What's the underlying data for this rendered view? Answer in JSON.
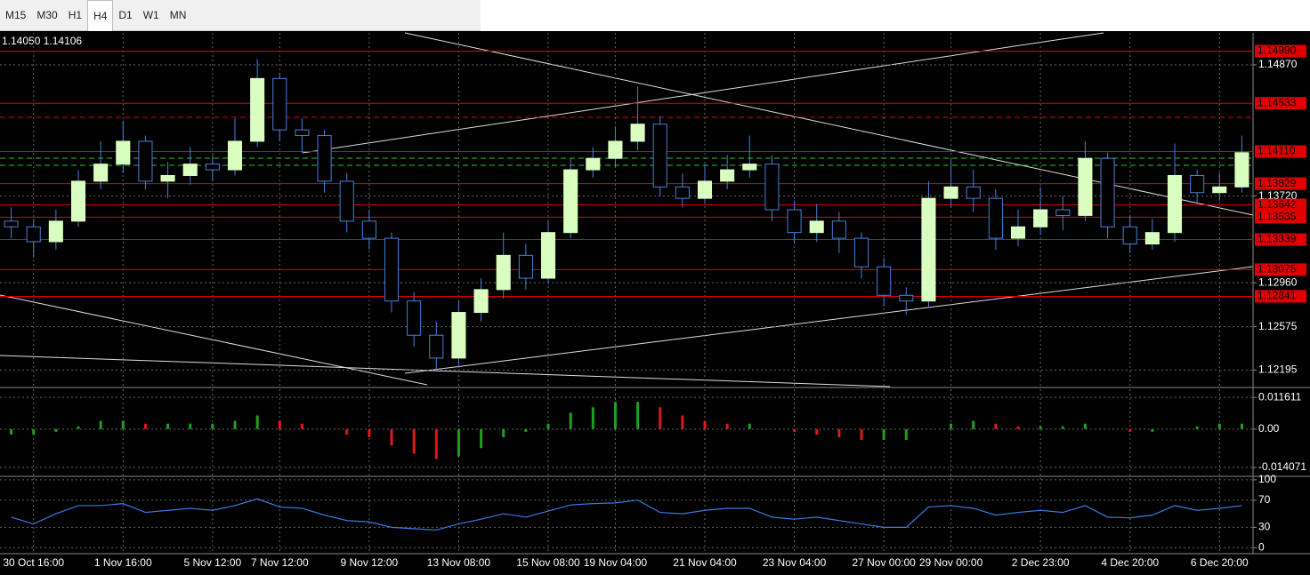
{
  "toolbar": {
    "tabs": [
      "M15",
      "M30",
      "H1",
      "H4",
      "D1",
      "W1",
      "MN"
    ],
    "active": 3
  },
  "chart_data": [
    {
      "type": "candlestick",
      "quote": "1.14050 1.14106",
      "categories": [
        null,
        "30 Oct 16:00",
        null,
        null,
        null,
        "1 Nov 16:00",
        null,
        null,
        null,
        "5 Nov 12:00",
        null,
        null,
        "7 Nov 12:00",
        null,
        null,
        null,
        "9 Nov 12:00",
        null,
        null,
        null,
        "13 Nov 08:00",
        null,
        null,
        null,
        "15 Nov 08:00",
        null,
        null,
        "19 Nov 04:00",
        null,
        null,
        null,
        "21 Nov 04:00",
        null,
        null,
        null,
        "23 Nov 04:00",
        null,
        null,
        null,
        "27 Nov 00:00",
        null,
        null,
        "29 Nov 00:00",
        null,
        null,
        null,
        "2 Dec 23:00",
        null,
        null,
        null,
        "4 Dec 20:00",
        null,
        null,
        null,
        "6 Dec 20:00",
        null
      ],
      "open": [
        1.135,
        1.1345,
        1.1332,
        1.135,
        1.1385,
        1.14,
        1.142,
        1.1385,
        1.139,
        1.14,
        1.1395,
        1.142,
        1.1475,
        1.143,
        1.1425,
        1.1385,
        1.135,
        1.1335,
        1.128,
        1.125,
        1.123,
        1.127,
        1.129,
        1.132,
        1.13,
        1.134,
        1.1395,
        1.1405,
        1.142,
        1.1435,
        1.138,
        1.137,
        1.1385,
        1.1395,
        1.14,
        1.136,
        1.134,
        1.135,
        1.1335,
        1.131,
        1.1285,
        1.128,
        1.137,
        1.138,
        1.137,
        1.1335,
        1.1345,
        1.136,
        1.1355,
        1.1405,
        1.1345,
        1.133,
        1.134,
        1.139,
        1.1375,
        1.138
      ],
      "high": [
        1.1362,
        1.1352,
        1.136,
        1.1395,
        1.142,
        1.1438,
        1.1425,
        1.1402,
        1.1415,
        1.1408,
        1.144,
        1.1492,
        1.148,
        1.144,
        1.143,
        1.1392,
        1.136,
        1.134,
        1.1288,
        1.1262,
        1.128,
        1.13,
        1.134,
        1.133,
        1.135,
        1.1405,
        1.1415,
        1.1432,
        1.1468,
        1.1442,
        1.1392,
        1.14,
        1.1408,
        1.1425,
        1.1408,
        1.1368,
        1.1365,
        1.1358,
        1.134,
        1.1318,
        1.1292,
        1.1385,
        1.1405,
        1.1395,
        1.1378,
        1.136,
        1.138,
        1.1372,
        1.142,
        1.141,
        1.1355,
        1.1352,
        1.1418,
        1.1395,
        1.1392,
        1.1425
      ],
      "low": [
        1.1335,
        1.1318,
        1.1325,
        1.1345,
        1.1378,
        1.1392,
        1.1378,
        1.137,
        1.1382,
        1.1385,
        1.139,
        1.1415,
        1.142,
        1.141,
        1.1375,
        1.134,
        1.1325,
        1.127,
        1.124,
        1.1218,
        1.1222,
        1.1262,
        1.1282,
        1.129,
        1.1295,
        1.1335,
        1.1388,
        1.1398,
        1.1412,
        1.1372,
        1.1362,
        1.1365,
        1.1378,
        1.1388,
        1.135,
        1.133,
        1.1332,
        1.1322,
        1.13,
        1.1275,
        1.1268,
        1.1275,
        1.1362,
        1.1358,
        1.1325,
        1.1328,
        1.1338,
        1.1342,
        1.135,
        1.1335,
        1.1322,
        1.1325,
        1.1332,
        1.1365,
        1.1368,
        1.1375
      ],
      "close": [
        1.1345,
        1.1332,
        1.135,
        1.1385,
        1.14,
        1.142,
        1.1385,
        1.139,
        1.14,
        1.1395,
        1.142,
        1.1475,
        1.143,
        1.1425,
        1.1385,
        1.135,
        1.1335,
        1.128,
        1.125,
        1.123,
        1.127,
        1.129,
        1.132,
        1.13,
        1.134,
        1.1395,
        1.1405,
        1.142,
        1.1435,
        1.138,
        1.137,
        1.1385,
        1.1395,
        1.14,
        1.136,
        1.134,
        1.135,
        1.1335,
        1.131,
        1.1285,
        1.128,
        1.137,
        1.138,
        1.137,
        1.1335,
        1.1345,
        1.136,
        1.1355,
        1.1405,
        1.1345,
        1.133,
        1.134,
        1.139,
        1.1375,
        1.138,
        1.141
      ],
      "up_color": "#d8ffc0",
      "down_color": "#000000",
      "wick_color": "#4a7fd8",
      "ylim": [
        1.1205,
        1.1515
      ],
      "yticks": [
        {
          "value": 1.1487,
          "label": "1.14870"
        },
        {
          "value": 1.1372,
          "label": "1.13720"
        },
        {
          "value": 1.1296,
          "label": "1.12960"
        },
        {
          "value": 1.12575,
          "label": "1.12575"
        },
        {
          "value": 1.12195,
          "label": "1.12195"
        }
      ],
      "levels": [
        {
          "value": 1.1499,
          "label": "1.14990"
        },
        {
          "value": 1.14533,
          "label": "1.14533"
        },
        {
          "value": 1.1411,
          "label": "1.14110"
        },
        {
          "value": 1.13829,
          "label": "1.13829"
        },
        {
          "value": 1.13642,
          "label": "1.13642"
        },
        {
          "value": 1.13535,
          "label": "1.13535"
        },
        {
          "value": 1.13339,
          "label": "1.13339"
        },
        {
          "value": 1.13075,
          "label": "1.13075"
        },
        {
          "value": 1.12841,
          "label": "1.12841"
        }
      ],
      "level_color": "#e00000",
      "grid": true
    },
    {
      "type": "histogram",
      "values": [
        -0.002,
        -0.002,
        -0.001,
        0.001,
        0.003,
        0.003,
        0.002,
        0.002,
        0.002,
        0.002,
        0.003,
        0.005,
        0.003,
        0.002,
        0.0,
        -0.002,
        -0.003,
        -0.006,
        -0.009,
        -0.011,
        -0.01,
        -0.007,
        -0.003,
        -0.001,
        0.002,
        0.006,
        0.008,
        0.01,
        0.01,
        0.008,
        0.005,
        0.003,
        0.002,
        0.002,
        0.0,
        -0.001,
        -0.002,
        -0.003,
        -0.004,
        -0.004,
        -0.004,
        0.0,
        0.002,
        0.003,
        0.002,
        0.001,
        0.001,
        0.001,
        0.002,
        0.0,
        -0.001,
        -0.001,
        0.0,
        0.001,
        0.002,
        0.002
      ],
      "up_color": "#1ea01e",
      "down_color": "#e01818",
      "ylim": [
        -0.017,
        0.0146
      ],
      "yticks": [
        0.011611,
        {
          "value": 0,
          "label": "0.00"
        },
        -0.014071
      ],
      "grid": true
    },
    {
      "type": "line",
      "values": [
        45,
        35,
        50,
        62,
        62,
        65,
        52,
        55,
        58,
        55,
        62,
        72,
        60,
        58,
        48,
        40,
        38,
        30,
        28,
        26,
        35,
        42,
        50,
        45,
        54,
        63,
        65,
        66,
        70,
        52,
        50,
        55,
        58,
        58,
        45,
        42,
        45,
        40,
        35,
        30,
        30,
        60,
        62,
        58,
        48,
        52,
        55,
        52,
        62,
        45,
        44,
        48,
        62,
        55,
        58,
        62
      ],
      "color": "#3c78e6",
      "ylim": [
        -7.5,
        102.5
      ],
      "yticks": [
        100,
        70,
        30,
        0
      ],
      "grid": true
    }
  ]
}
